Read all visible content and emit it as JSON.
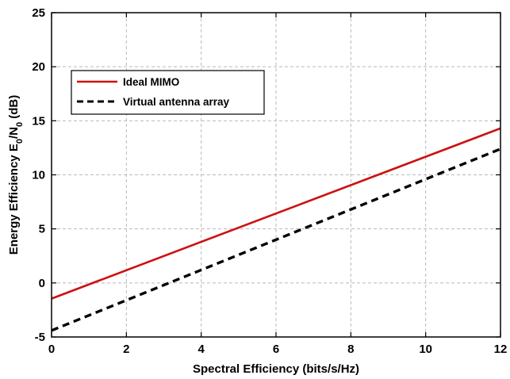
{
  "chart_data": {
    "type": "line",
    "xlabel": "Spectral Efficiency (bits/s/Hz)",
    "ylabel": {
      "prefix": "Energy Efficiency E",
      "sub1": "0",
      "mid": "/N",
      "sub2": "0",
      "suffix": " (dB)"
    },
    "xlim": [
      0,
      12
    ],
    "ylim": [
      -5,
      25
    ],
    "xticks": [
      0,
      2,
      4,
      6,
      8,
      10,
      12
    ],
    "yticks": [
      -5,
      0,
      5,
      10,
      15,
      20,
      25
    ],
    "grid": true,
    "legend_position": "top-left",
    "series": [
      {
        "name": "Ideal MIMO",
        "color": "#cc1111",
        "style": "solid",
        "x": [
          0,
          12
        ],
        "y": [
          -1.45,
          14.3
        ]
      },
      {
        "name": "Virtual antenna array",
        "color": "#000000",
        "style": "dashed",
        "x": [
          0,
          12
        ],
        "y": [
          -4.4,
          12.4
        ]
      }
    ]
  }
}
